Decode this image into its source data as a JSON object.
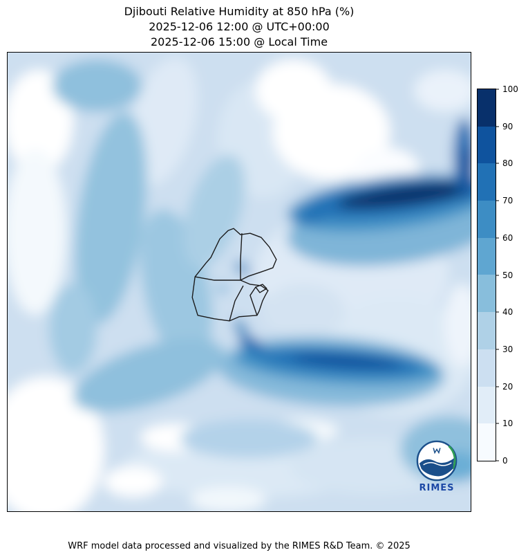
{
  "title": {
    "line1": "Djibouti Relative Humidity at 850 hPa (%)",
    "line2": "2025-12-06 12:00 @ UTC+00:00",
    "line3": "2025-12-06 15:00 @ Local Time"
  },
  "footer": {
    "caption": "WRF model data processed and visualized by the RIMES R&D Team. © 2025"
  },
  "logo": {
    "label": "RIMES"
  },
  "colorbar": {
    "ticks": [
      "0",
      "10",
      "20",
      "30",
      "40",
      "50",
      "60",
      "70",
      "80",
      "90",
      "100"
    ],
    "colors": [
      "#f7fbff",
      "#e1edf8",
      "#ccdff1",
      "#afd1e7",
      "#88bedc",
      "#5fa6d1",
      "#3d8dc4",
      "#2171b5",
      "#0f539e",
      "#08306b"
    ]
  },
  "chart_data": {
    "type": "heatmap",
    "title": "Djibouti Relative Humidity at 850 hPa (%)",
    "time_utc": "2025-12-06 12:00 @ UTC+00:00",
    "time_local": "2025-12-06 15:00 @ Local Time",
    "variable": "Relative Humidity",
    "level_hPa": 850,
    "units": "%",
    "model": "WRF",
    "colormap": "Blues (discrete)",
    "levels": [
      0,
      10,
      20,
      30,
      40,
      50,
      60,
      70,
      80,
      90,
      100
    ],
    "level_colors": [
      "#f7fbff",
      "#e1edf8",
      "#ccdff1",
      "#afd1e7",
      "#88bedc",
      "#5fa6d1",
      "#3d8dc4",
      "#2171b5",
      "#0f539e",
      "#08306b"
    ],
    "legend_position": "right vertical colorbar, 0-100",
    "overlay": "Djibouti administrative boundaries (black outline, center of map)",
    "field_summary": [
      {
        "area": "dark band across upper-right (Gulf of Aden coast, NE of Djibouti)",
        "rh_percent": "80-100"
      },
      {
        "area": "right edge at upper-right corner",
        "rh_percent": "70-90"
      },
      {
        "area": "dark band south/southeast of Djibouti (bottom-center)",
        "rh_percent": "70-90"
      },
      {
        "area": "vertical bands on left third of map (highlands to the west)",
        "rh_percent": "40-60"
      },
      {
        "area": "bottom-left diagonal band",
        "rh_percent": "40-50"
      },
      {
        "area": "bottom-right corner patch",
        "rh_percent": "40-60"
      },
      {
        "area": "small spots inside Djibouti near Gulf of Tadjoura",
        "rh_percent": "50-70"
      },
      {
        "area": "large pale region east and southeast of Djibouti",
        "rh_percent": "10-30"
      },
      {
        "area": "white patches top-center-right, left edge, bottom-left and scattered bottom",
        "rh_percent": "0-10"
      },
      {
        "area": "general background",
        "rh_percent": "30-40"
      }
    ]
  }
}
